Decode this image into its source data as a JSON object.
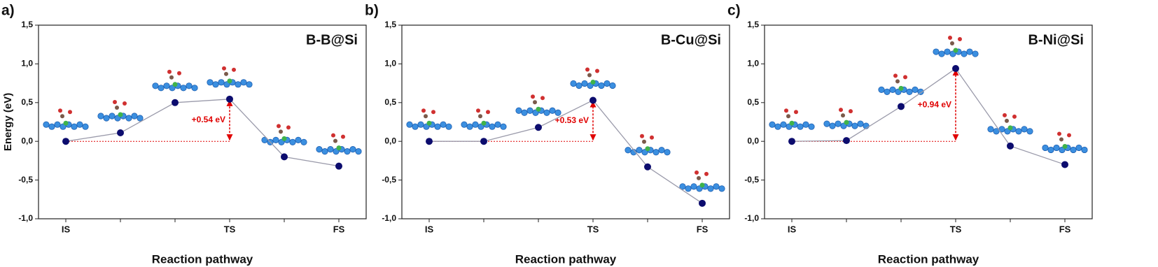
{
  "chart_data": [
    {
      "type": "line",
      "panel_label": "a)",
      "title": "B-B@Si",
      "ylabel": "Energy (eV)",
      "xlabel": "Reaction pathway",
      "categories": [
        "IS",
        null,
        null,
        "TS",
        null,
        "FS"
      ],
      "values": [
        0,
        0.11,
        0.5,
        0.545,
        -0.2,
        -0.32
      ],
      "color": "#9a9aaa",
      "marker_color": "#0c0c6e",
      "annotation": "+0.54 eV",
      "ylim": [
        -1,
        1.5
      ],
      "yticks": [
        {
          "value": -1,
          "label": "-1,0"
        },
        {
          "value": -0.5,
          "label": "-0,5"
        },
        {
          "value": 0,
          "label": "0,0"
        },
        {
          "value": 0.5,
          "label": "0,5"
        },
        {
          "value": 1,
          "label": "1,0"
        },
        {
          "value": 1.5,
          "label": "1,5"
        }
      ]
    },
    {
      "type": "line",
      "panel_label": "b)",
      "title": "B-Cu@Si",
      "xlabel": "Reaction pathway",
      "categories": [
        "IS",
        null,
        null,
        "TS",
        null,
        "FS"
      ],
      "values": [
        0,
        0,
        0.18,
        0.53,
        -0.33,
        -0.8
      ],
      "color": "#9a9aaa",
      "marker_color": "#0c0c6e",
      "annotation": "+0.53 eV",
      "ylim": [
        -1,
        1.5
      ],
      "yticks": [
        {
          "value": -1,
          "label": "-1,0"
        },
        {
          "value": -0.5,
          "label": "-0,5"
        },
        {
          "value": 0,
          "label": "0,0"
        },
        {
          "value": 0.5,
          "label": "0,5"
        },
        {
          "value": 1,
          "label": "1,0"
        },
        {
          "value": 1.5,
          "label": "1,5"
        }
      ]
    },
    {
      "type": "line",
      "panel_label": "c)",
      "title": "B-Ni@Si",
      "xlabel": "Reaction pathway",
      "categories": [
        "IS",
        null,
        null,
        "TS",
        null,
        "FS"
      ],
      "values": [
        0,
        0.01,
        0.45,
        0.94,
        -0.06,
        -0.3
      ],
      "color": "#9a9aaa",
      "marker_color": "#0c0c6e",
      "annotation": "+0.94 eV",
      "ylim": [
        -1,
        1.5
      ],
      "yticks": [
        {
          "value": -1,
          "label": "-1,0"
        },
        {
          "value": -0.5,
          "label": "-0,5"
        },
        {
          "value": 0,
          "label": "0,0"
        },
        {
          "value": 0.5,
          "label": "0,5"
        },
        {
          "value": 1,
          "label": "1,0"
        },
        {
          "value": 1.5,
          "label": "1,5"
        }
      ]
    }
  ]
}
